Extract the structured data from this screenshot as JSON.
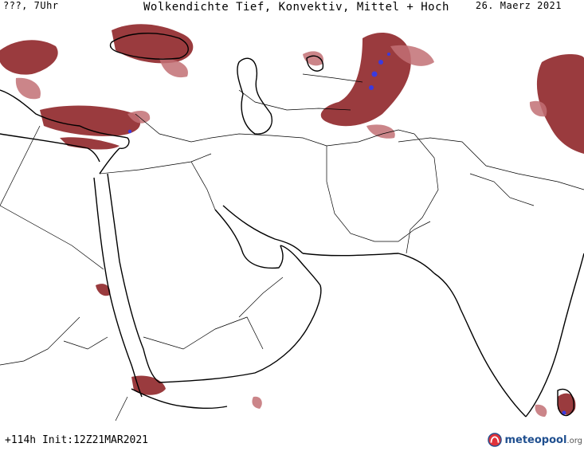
{
  "header": {
    "left": "???, 7Uhr",
    "title": "Wolkendichte  Tief, Konvektiv, Mittel + Hoch",
    "date": "26. Maerz 2021"
  },
  "footer": {
    "run": "+114h Init:12Z21MAR2021",
    "logo_text": "meteopool",
    "logo_tld": ".org"
  },
  "colors": {
    "cloud_dense": "#9a3b3e",
    "cloud_light": "#c27074",
    "convective": "#3a3ae0"
  }
}
